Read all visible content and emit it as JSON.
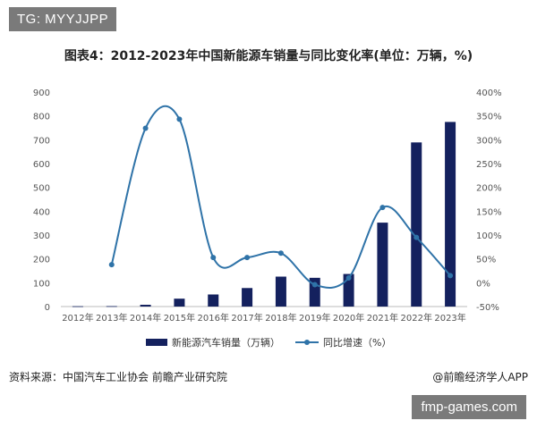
{
  "tag": "TG: MYYJJPP",
  "site": "fmp-games.com",
  "footer": {
    "source": "资料来源：中国汽车工业协会 前瞻产业研究院",
    "credit": "@前瞻经济学人APP"
  },
  "chart_data": {
    "type": "bar+line",
    "title": "图表4：2012-2023年中国新能源车销量与同比变化率(单位：万辆，%)",
    "categories": [
      "2012年",
      "2013年",
      "2014年",
      "2015年",
      "2016年",
      "2017年",
      "2018年",
      "2019年",
      "2020年",
      "2021年",
      "2022年",
      "2023年"
    ],
    "left_axis": {
      "min": 0,
      "max": 900,
      "ticks": [
        0,
        100,
        200,
        300,
        400,
        500,
        600,
        700,
        800,
        900
      ]
    },
    "right_axis": {
      "min": -50,
      "max": 400,
      "ticks": [
        "-50%",
        "0%",
        "50%",
        "100%",
        "150%",
        "200%",
        "250%",
        "300%",
        "350%",
        "400%"
      ],
      "tick_values": [
        -50,
        0,
        50,
        100,
        150,
        200,
        250,
        300,
        350,
        400
      ]
    },
    "series": [
      {
        "name": "新能源汽车销量（万辆）",
        "type": "bar",
        "axis": "left",
        "color": "#14215e",
        "values": [
          1.3,
          1.8,
          7.5,
          33.1,
          50.7,
          77.7,
          125.6,
          120.6,
          136.7,
          352.1,
          688.7,
          774.6
        ]
      },
      {
        "name": "同比增速（%）",
        "type": "line",
        "axis": "right",
        "color": "#2f73a8",
        "values": [
          null,
          37.9,
          324,
          343,
          53,
          53,
          62,
          -4,
          10,
          158,
          95,
          15
        ]
      }
    ],
    "legend": "bottom",
    "grid": false
  }
}
